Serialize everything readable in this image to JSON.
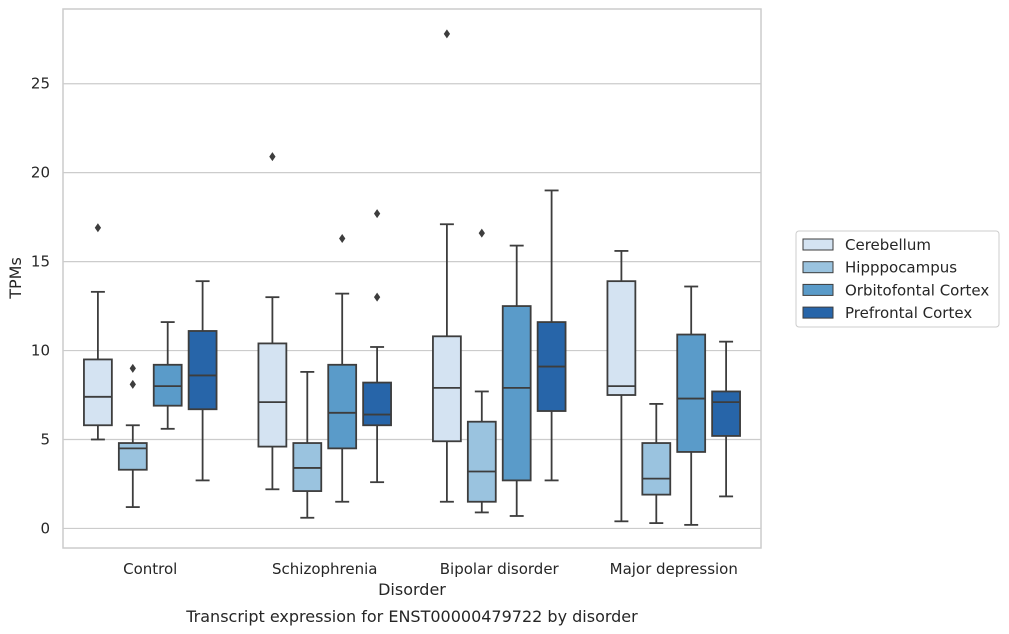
{
  "chart_data": {
    "type": "box",
    "xlabel": "Disorder",
    "ylabel": "TPMs",
    "caption": "Transcript expression for ENST00000479722 by disorder",
    "categories": [
      "Control",
      "Schizophrenia",
      "Bipolar disorder",
      "Major depression"
    ],
    "ylim": [
      -1.1,
      29.2
    ],
    "yticks": [
      0,
      5,
      10,
      15,
      20,
      25
    ],
    "grid": "horizontal",
    "legend_position": "right",
    "series": [
      {
        "name": "Cerebellum",
        "color": "#d4e3f2",
        "boxes": [
          {
            "whislo": 5.0,
            "q1": 5.8,
            "med": 7.4,
            "q3": 9.5,
            "whishi": 13.3,
            "fliers": [
              16.9
            ]
          },
          {
            "whislo": 2.2,
            "q1": 4.6,
            "med": 7.1,
            "q3": 10.4,
            "whishi": 13.0,
            "fliers": [
              20.9
            ]
          },
          {
            "whislo": 1.5,
            "q1": 4.9,
            "med": 7.9,
            "q3": 10.8,
            "whishi": 17.1,
            "fliers": [
              27.8
            ]
          },
          {
            "whislo": 0.4,
            "q1": 7.5,
            "med": 8.0,
            "q3": 13.9,
            "whishi": 15.6,
            "fliers": []
          }
        ]
      },
      {
        "name": "Hipppocampus",
        "color": "#9ac3df",
        "boxes": [
          {
            "whislo": 1.2,
            "q1": 3.3,
            "med": 4.5,
            "q3": 4.8,
            "whishi": 5.8,
            "fliers": [
              9.0,
              8.1
            ]
          },
          {
            "whislo": 0.6,
            "q1": 2.1,
            "med": 3.4,
            "q3": 4.8,
            "whishi": 8.8,
            "fliers": []
          },
          {
            "whislo": 0.9,
            "q1": 1.5,
            "med": 3.2,
            "q3": 6.0,
            "whishi": 7.7,
            "fliers": [
              16.6
            ]
          },
          {
            "whislo": 0.3,
            "q1": 1.9,
            "med": 2.8,
            "q3": 4.8,
            "whishi": 7.0,
            "fliers": []
          }
        ]
      },
      {
        "name": "Orbitofontal Cortex",
        "color": "#5a9bc9",
        "boxes": [
          {
            "whislo": 5.6,
            "q1": 6.9,
            "med": 8.0,
            "q3": 9.2,
            "whishi": 11.6,
            "fliers": []
          },
          {
            "whislo": 1.5,
            "q1": 4.5,
            "med": 6.5,
            "q3": 9.2,
            "whishi": 13.2,
            "fliers": [
              16.3
            ]
          },
          {
            "whislo": 0.7,
            "q1": 2.7,
            "med": 7.9,
            "q3": 12.5,
            "whishi": 15.9,
            "fliers": []
          },
          {
            "whislo": 0.2,
            "q1": 4.3,
            "med": 7.3,
            "q3": 10.9,
            "whishi": 13.6,
            "fliers": []
          }
        ]
      },
      {
        "name": "Prefrontal Cortex",
        "color": "#2765a9",
        "boxes": [
          {
            "whislo": 2.7,
            "q1": 6.7,
            "med": 8.6,
            "q3": 11.1,
            "whishi": 13.9,
            "fliers": []
          },
          {
            "whislo": 2.6,
            "q1": 5.8,
            "med": 6.4,
            "q3": 8.2,
            "whishi": 10.2,
            "fliers": [
              17.7,
              13.0
            ]
          },
          {
            "whislo": 2.7,
            "q1": 6.6,
            "med": 9.1,
            "q3": 11.6,
            "whishi": 19.0,
            "fliers": []
          },
          {
            "whislo": 1.8,
            "q1": 5.2,
            "med": 7.1,
            "q3": 7.7,
            "whishi": 10.5,
            "fliers": []
          }
        ]
      }
    ]
  }
}
